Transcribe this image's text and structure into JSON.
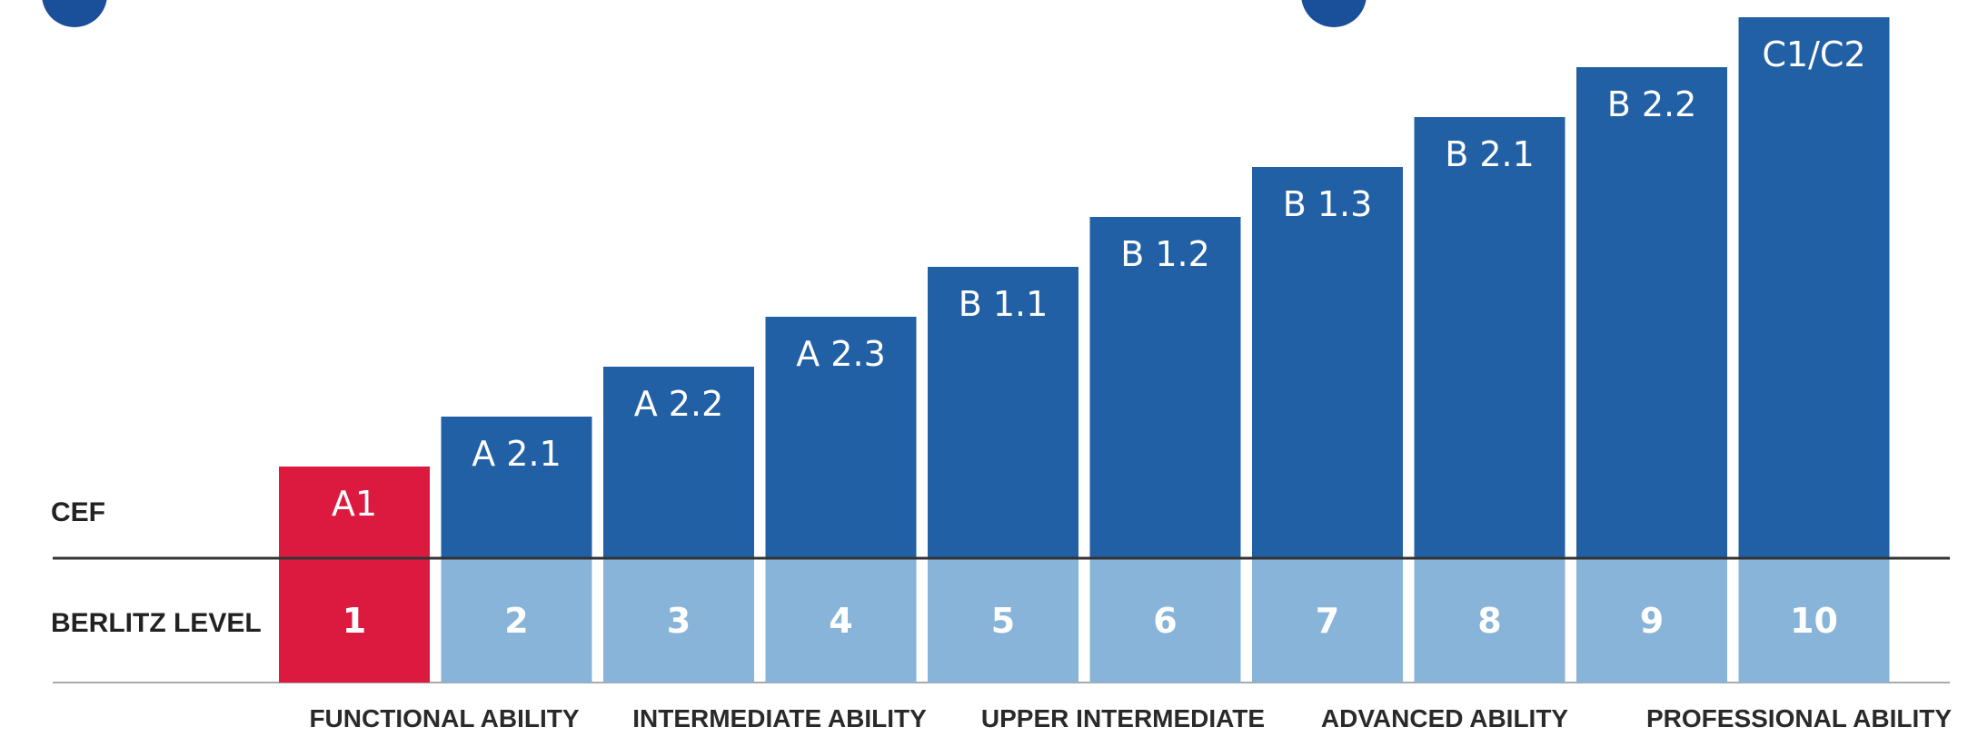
{
  "row_labels": {
    "cef": "CEF",
    "berlitz": "BERLITZ LEVEL"
  },
  "ability_groups": [
    {
      "label": "FUNCTIONAL ABILITY"
    },
    {
      "label": "INTERMEDIATE ABILITY"
    },
    {
      "label": "UPPER INTERMEDIATE"
    },
    {
      "label": "ADVANCED ABILITY"
    },
    {
      "label": "PROFESSIONAL ABILITY"
    }
  ],
  "colors": {
    "cef_bar": "#2160a5",
    "highlight": "#dc1a3f",
    "berlitz_cell": "#87b4d8",
    "baseline": "#333333",
    "rule": "#aaaaaa",
    "bar_text": "#ffffff"
  },
  "chart_data": {
    "type": "bar",
    "categories": [
      "1",
      "2",
      "3",
      "4",
      "5",
      "6",
      "7",
      "8",
      "9",
      "10"
    ],
    "cef_labels": [
      "A1",
      "A 2.1",
      "A 2.2",
      "A 2.3",
      "B 1.1",
      "B 1.2",
      "B 1.3",
      "B 2.1",
      "B 2.2",
      "C1/C2"
    ],
    "values": [
      1,
      2,
      3,
      4,
      5,
      6,
      7,
      8,
      9,
      10
    ],
    "highlighted_index": 0,
    "title": "",
    "xlabel": "",
    "ylabel": ""
  }
}
